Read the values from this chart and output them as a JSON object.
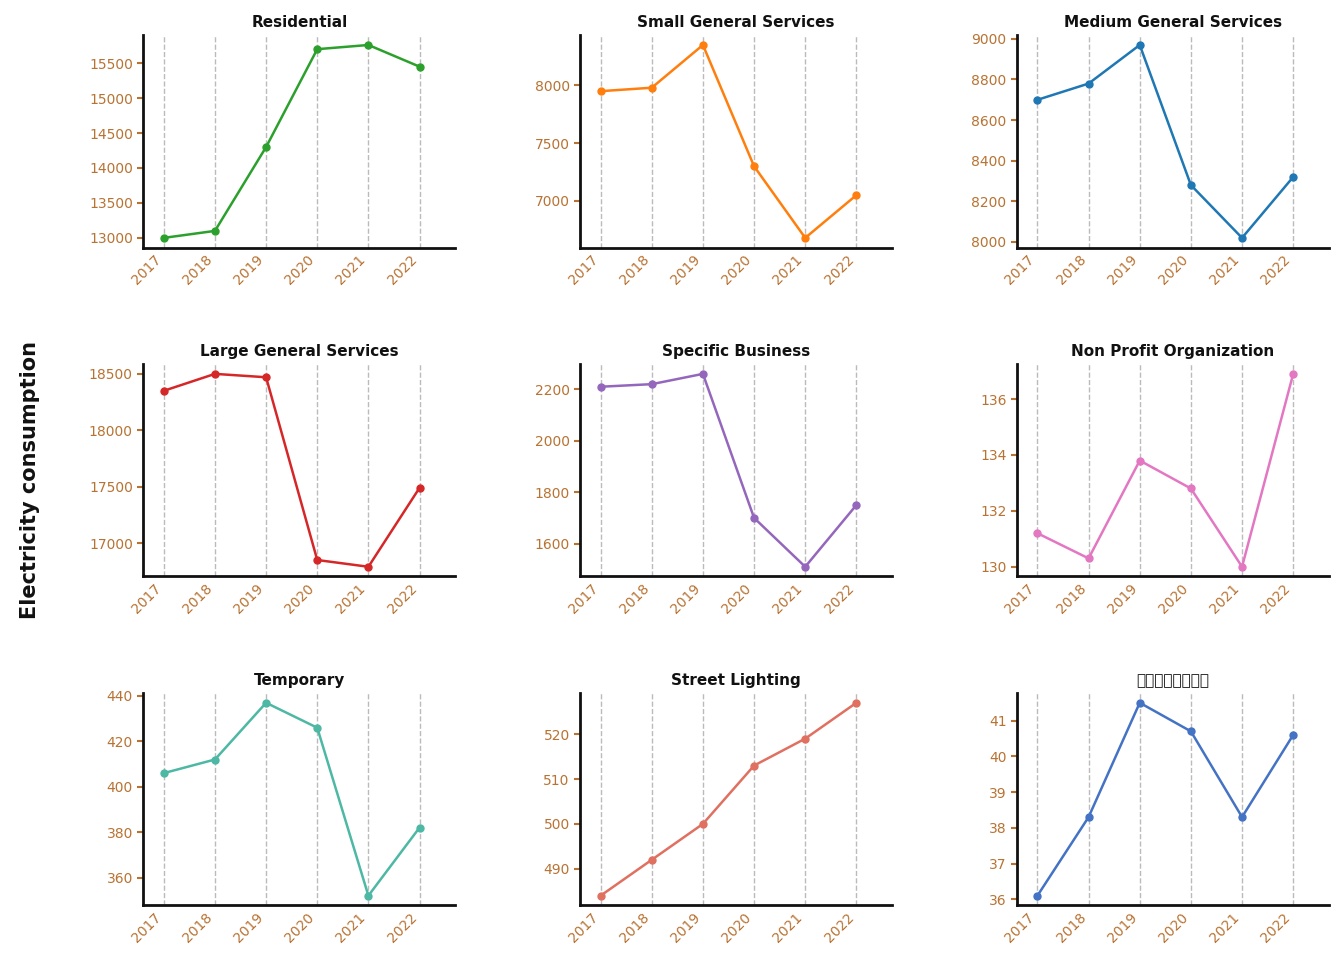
{
  "years": [
    2017,
    2018,
    2019,
    2020,
    2021,
    2022
  ],
  "subplots": [
    {
      "title": "Residential",
      "color": "#2ca02c",
      "values": [
        13000,
        13100,
        14300,
        15700,
        15760,
        15450
      ]
    },
    {
      "title": "Small General Services",
      "color": "#ff7f0e",
      "values": [
        7950,
        7980,
        8350,
        7300,
        6680,
        7050
      ]
    },
    {
      "title": "Medium General Services",
      "color": "#1f77b4",
      "values": [
        8700,
        8780,
        8970,
        8280,
        8020,
        8320
      ]
    },
    {
      "title": "Large General Services",
      "color": "#d62728",
      "values": [
        18350,
        18500,
        18470,
        16850,
        16790,
        17490
      ]
    },
    {
      "title": "Specific Business",
      "color": "#9467bd",
      "values": [
        2210,
        2220,
        2260,
        1700,
        1510,
        1750
      ]
    },
    {
      "title": "Non Profit Organization",
      "color": "#e377c2",
      "values": [
        131.2,
        130.3,
        133.8,
        132.8,
        130.0,
        136.9
      ]
    },
    {
      "title": "Temporary",
      "color": "#4db8a4",
      "values": [
        406,
        412,
        437,
        426,
        352,
        382
      ]
    },
    {
      "title": "Street Lighting",
      "color": "#e07060",
      "values": [
        484,
        492,
        500,
        513,
        519,
        527
      ]
    },
    {
      "title": "ไฟฟ้าการ",
      "color": "#4472c4",
      "values": [
        36.1,
        38.3,
        41.5,
        40.7,
        38.3,
        40.6
      ]
    }
  ],
  "ylabel": "Electricity consumption",
  "background_color": "#ffffff",
  "grid_color": "#bbbbbb",
  "tick_label_color": "#b87333",
  "spine_color": "#111111",
  "title_color": "#111111",
  "title_fontsize": 11,
  "tick_fontsize": 10,
  "line_width": 1.8,
  "marker_size": 5
}
